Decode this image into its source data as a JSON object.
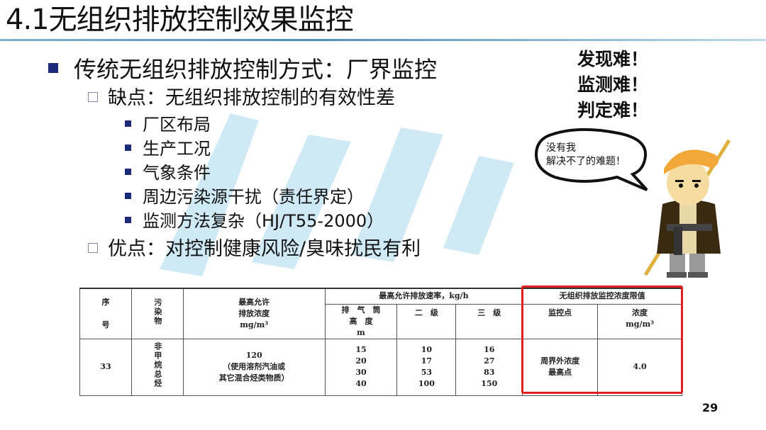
{
  "slide": {
    "title": "4.1无组织排放控制效果监控",
    "page_number": "29",
    "accent_color": "#1b2a7a",
    "title_rule_color": "#4f8fb8"
  },
  "bullets": {
    "level1": "传统无组织排放控制方式：厂界监控",
    "drawback": "缺点：无组织排放控制的有效性差",
    "drawback_items": [
      "厂区布局",
      "生产工况",
      "气象条件",
      "周边污染源干扰（责任界定）",
      "监测方法复杂（HJ/T55-2000）"
    ],
    "advantage": "优点：对控制健康风险/臭味扰民有利"
  },
  "cartoon": {
    "exclamations": [
      "发现难！",
      "监测难！",
      "判定难！"
    ],
    "speech_line1": "没有我",
    "speech_line2": "解决不了的难题！"
  },
  "table": {
    "headers": {
      "seq": "序\n号",
      "seq_a": "序",
      "seq_b": "号",
      "pollutant": "污染物",
      "max_conc": "最高允许",
      "max_conc2": "排放浓度",
      "max_conc_unit": "mg/m³",
      "rate_group": "最高允许排放速率，kg/h",
      "stack_height_a": "排　气　筒",
      "stack_height_b": "高　度",
      "stack_height_unit": "m",
      "level2": "二　级",
      "level3": "三　级",
      "fugitive_group": "无组织排放监控浓度限值",
      "monitor_point": "监控点",
      "concentration": "浓度",
      "concentration_unit": "mg/m³"
    },
    "row": {
      "seq": "33",
      "pollutant": "非甲烷总烃",
      "max_conc": "120",
      "max_conc_note1": "（使用溶剂汽油或",
      "max_conc_note2": "其它混合烃类物质）",
      "stack_heights": [
        "15",
        "20",
        "30",
        "40"
      ],
      "level2_rates": [
        "10",
        "17",
        "53",
        "100"
      ],
      "level3_rates": [
        "16",
        "27",
        "83",
        "150"
      ],
      "monitor_point_1": "周界外浓度",
      "monitor_point_2": "最高点",
      "concentration": "4.0"
    },
    "highlight_color": "#e02020"
  }
}
